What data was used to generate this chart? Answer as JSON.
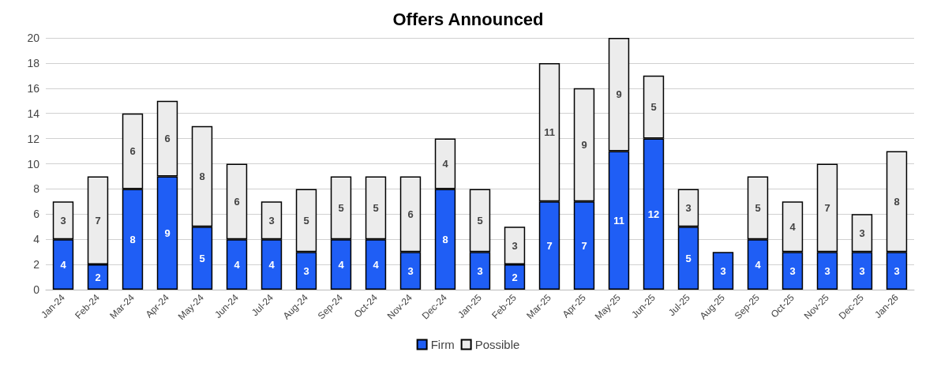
{
  "chart_data": {
    "type": "bar",
    "title": "Offers Announced",
    "stacked": true,
    "categories": [
      "Jan-24",
      "Feb-24",
      "Mar-24",
      "Apr-24",
      "May-24",
      "Jun-24",
      "Jul-24",
      "Aug-24",
      "Sep-24",
      "Oct-24",
      "Nov-24",
      "Dec-24",
      "Jan-25",
      "Feb-25",
      "Mar-25",
      "Apr-25",
      "May-25",
      "Jun-25",
      "Jul-25",
      "Aug-25",
      "Sep-25",
      "Oct-25",
      "Nov-25",
      "Dec-25",
      "Jan-26"
    ],
    "series": [
      {
        "name": "Firm",
        "color": "#1f5ef5",
        "values": [
          4,
          2,
          8,
          9,
          5,
          4,
          4,
          3,
          4,
          4,
          3,
          8,
          3,
          2,
          7,
          7,
          11,
          12,
          5,
          3,
          4,
          3,
          3,
          3,
          3
        ],
        "value_labels": [
          "4",
          "2",
          "8",
          "9",
          "5",
          "4",
          "4",
          "3",
          "4",
          "4",
          "3",
          "8",
          "3",
          "2",
          "7",
          "7",
          "11",
          "12",
          "5",
          "3",
          "4",
          "3",
          "3",
          "3",
          "3"
        ]
      },
      {
        "name": "Possible",
        "color": "#ececec",
        "values": [
          3,
          7,
          6,
          6,
          8,
          6,
          3,
          5,
          5,
          5,
          6,
          4,
          5,
          3,
          11,
          9,
          9,
          5,
          3,
          0,
          5,
          4,
          7,
          3,
          8
        ],
        "value_labels": [
          "3",
          "7",
          "6",
          "6",
          "8",
          "6",
          "3",
          "5",
          "5",
          "5",
          "6",
          "4",
          "5",
          "3",
          "11",
          "9",
          "9",
          "5",
          "3",
          null,
          "5",
          "4",
          "7",
          "3",
          "8"
        ]
      }
    ],
    "ylim": [
      0,
      20
    ],
    "yticks": [
      0,
      2,
      4,
      6,
      8,
      10,
      12,
      14,
      16,
      18,
      20
    ],
    "grid": "y",
    "legend": "bottom"
  }
}
